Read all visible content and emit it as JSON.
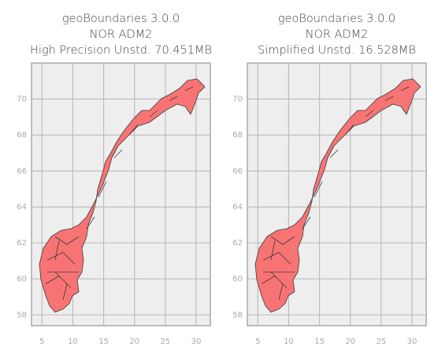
{
  "chart_data": [
    {
      "type": "map",
      "title": [
        "geoBoundaries 3.0.0",
        "NOR ADM2",
        "High Precision Unstd. 70.451MB"
      ],
      "xlim": [
        3.3,
        32.3
      ],
      "xticks": [
        5,
        10,
        15,
        20,
        25,
        30
      ],
      "ylim": [
        57.4,
        72.0
      ],
      "yticks": [
        58,
        60,
        62,
        64,
        66,
        68,
        70
      ],
      "grid": true,
      "color": "#f87474"
    },
    {
      "type": "map",
      "title": [
        "geoBoundaries 3.0.0",
        "NOR ADM2",
        "Simplified Unstd. 16.528MB"
      ],
      "xlim": [
        3.3,
        32.3
      ],
      "xticks": [
        5,
        10,
        15,
        20,
        25,
        30
      ],
      "ylim": [
        57.4,
        72.0
      ],
      "yticks": [
        58,
        60,
        62,
        64,
        66,
        68,
        70
      ],
      "grid": true,
      "color": "#f87474"
    }
  ]
}
